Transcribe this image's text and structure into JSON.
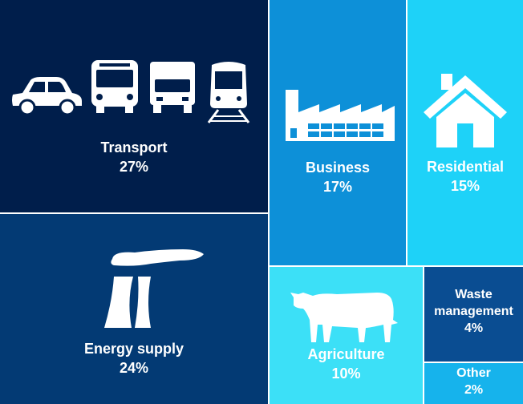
{
  "chart_data": {
    "type": "treemap",
    "title": "",
    "categories": [
      "Transport",
      "Energy supply",
      "Business",
      "Residential",
      "Agriculture",
      "Waste management",
      "Other"
    ],
    "values": [
      27,
      24,
      17,
      15,
      10,
      4,
      2
    ],
    "unit": "%",
    "tiles": [
      {
        "name": "Transport",
        "value_label": "27%",
        "color": "#001e4b",
        "icons": [
          "car-icon",
          "bus-icon",
          "truck-icon",
          "train-icon"
        ]
      },
      {
        "name": "Energy supply",
        "value_label": "24%",
        "color": "#033a74",
        "icons": [
          "power-station-icon"
        ]
      },
      {
        "name": "Business",
        "value_label": "17%",
        "color": "#0d90d8",
        "icons": [
          "factory-icon"
        ]
      },
      {
        "name": "Residential",
        "value_label": "15%",
        "color": "#1ed2f8",
        "icons": [
          "house-icon"
        ]
      },
      {
        "name": "Agriculture",
        "value_label": "10%",
        "color": "#3ce0f7",
        "icons": [
          "cow-icon"
        ]
      },
      {
        "name": "Waste management",
        "value_label": "4%",
        "color": "#0a4d92",
        "icons": []
      },
      {
        "name": "Other",
        "value_label": "2%",
        "color": "#16b3ec",
        "icons": []
      }
    ]
  }
}
